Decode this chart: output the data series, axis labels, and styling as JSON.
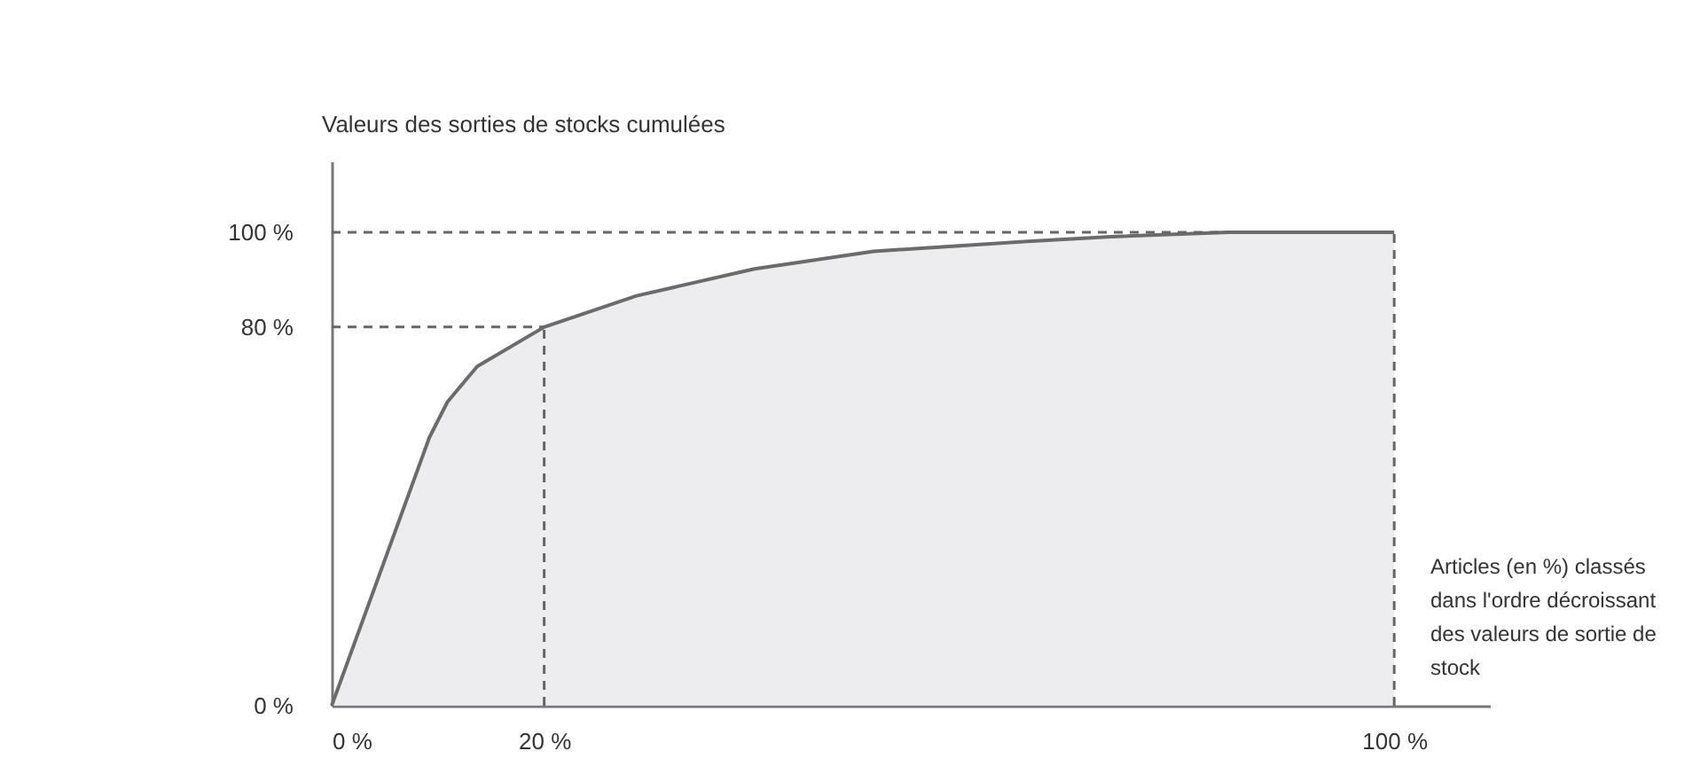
{
  "chart_data": {
    "type": "area",
    "ylabel": "Valeurs des sorties de stocks cumulées",
    "xlabel": "Articles (en %) classés dans l'ordre décroissant des valeurs de sortie de stock",
    "x": [
      0,
      9.2,
      10.9,
      13.7,
      20,
      28.7,
      39.8,
      51,
      65.5,
      73.3,
      84.4,
      100
    ],
    "series": [
      {
        "color": "#e5e6e8",
        "values": [
          0,
          56.7,
          64.2,
          71.7,
          80,
          86.6,
          92.3,
          96,
          98.1,
          99.1,
          100,
          100
        ]
      }
    ],
    "xlim": [
      0,
      109
    ],
    "ylim": [
      0,
      115
    ],
    "xticks": [
      {
        "value": 0,
        "label": "0 %"
      },
      {
        "value": 20,
        "label": "20 %"
      },
      {
        "value": 100,
        "label": "100 %"
      }
    ],
    "yticks": [
      {
        "value": 0,
        "label": "0 %"
      },
      {
        "value": 80,
        "label": "80 %"
      },
      {
        "value": 100,
        "label": "100 %"
      }
    ],
    "ref_lines": [
      {
        "axis": "y",
        "value": 100,
        "color": "#666666",
        "line_style": "dashed"
      },
      {
        "axis": "y",
        "value": 80,
        "color": "#666666",
        "line_style": "dashed"
      },
      {
        "axis": "x",
        "value": 20,
        "color": "#666666",
        "line_style": "dashed"
      },
      {
        "axis": "x",
        "value": 100,
        "color": "#666666",
        "line_style": "dashed"
      }
    ],
    "grid": false
  }
}
